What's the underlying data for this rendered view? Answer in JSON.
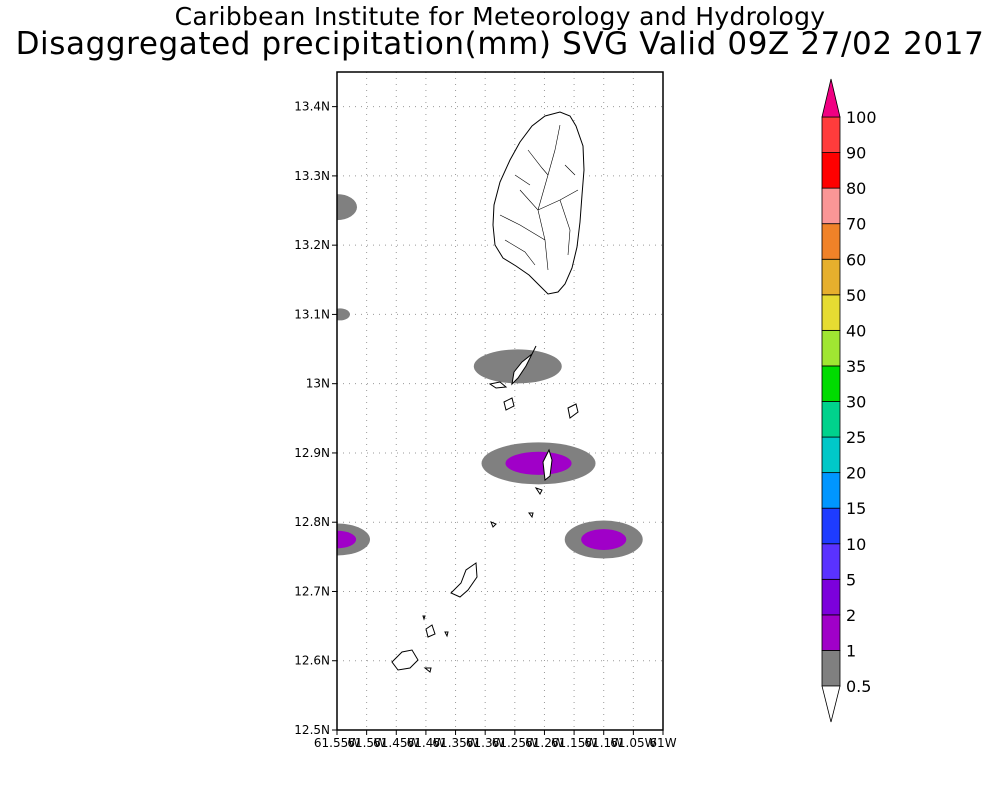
{
  "header": {
    "line1": "Caribbean Institute for Meteorology and Hydrology",
    "line2": "Disaggregated precipitation(mm) SVG Valid 09Z 27/02 2017"
  },
  "map": {
    "lat_range": [
      12.5,
      13.45
    ],
    "lon_range": [
      -61.55,
      -61.0
    ],
    "lat_ticks": [
      "13.4N",
      "13.3N",
      "13.2N",
      "13.1N",
      "13N",
      "12.9N",
      "12.8N",
      "12.7N",
      "12.6N",
      "12.5N"
    ],
    "lon_ticks": [
      "61.55W",
      "61.5W",
      "61.45W",
      "61.4W",
      "61.35W",
      "61.3W",
      "61.25W",
      "61.2W",
      "61.15W",
      "61.1W",
      "61.05W",
      "61W"
    ],
    "grid": true,
    "land_outline_color": "#000000",
    "precip_areas": [
      {
        "lon": -61.55,
        "lat": 13.255,
        "level": "0.5-1"
      },
      {
        "lon": -61.545,
        "lat": 13.1,
        "level": "0.5-1"
      },
      {
        "lon": -61.245,
        "lat": 13.025,
        "level": "0.5-1"
      },
      {
        "lon": -61.21,
        "lat": 12.885,
        "level": "2-5"
      },
      {
        "lon": -61.1,
        "lat": 12.775,
        "level": "2-5"
      },
      {
        "lon": -61.55,
        "lat": 12.775,
        "level": "2-5"
      }
    ]
  },
  "colorbar": {
    "levels": [
      "0.5",
      "1",
      "2",
      "5",
      "10",
      "15",
      "20",
      "25",
      "30",
      "35",
      "40",
      "50",
      "60",
      "70",
      "80",
      "90",
      "100"
    ],
    "colors": [
      "#808080",
      "#a000c8",
      "#7c00dc",
      "#5a32ff",
      "#1e3cff",
      "#0096ff",
      "#00c8c8",
      "#00d28c",
      "#00dc00",
      "#a0e632",
      "#e6dc32",
      "#e6af2d",
      "#f08228",
      "#fa9696",
      "#ff0000",
      "#ff3c3c"
    ],
    "over_color": "#f00082",
    "under_color": "#ffffff"
  }
}
